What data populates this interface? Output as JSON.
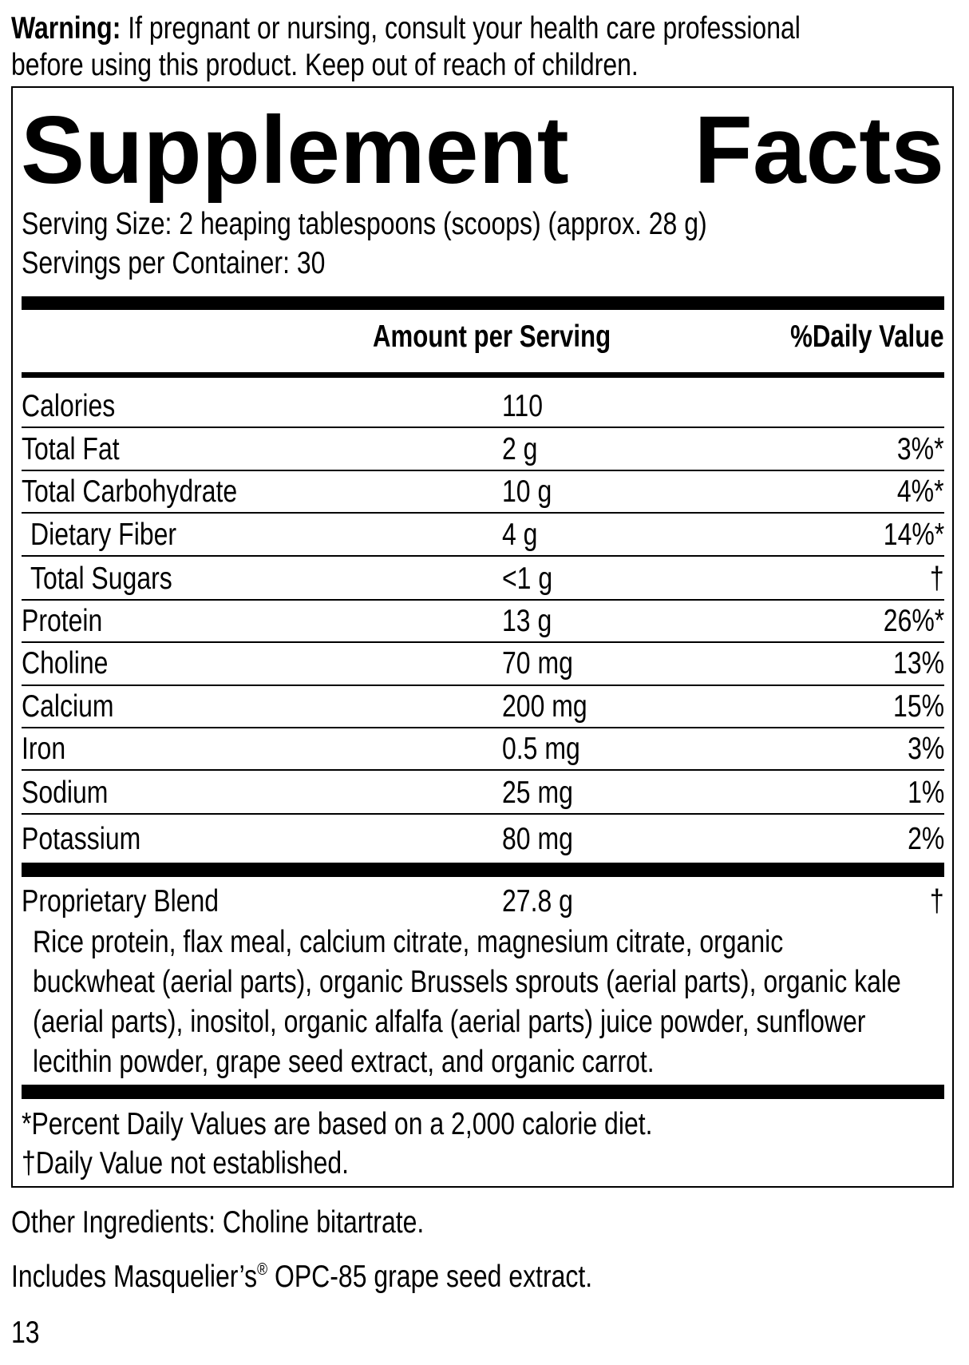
{
  "warning": {
    "label": "Warning:",
    "text": " If pregnant or nursing, consult your health care professional",
    "text2": "before using this product. Keep out of reach of children."
  },
  "facts": {
    "title_left": "Supplement",
    "title_right": "Facts",
    "serving_size": "Serving Size: 2 heaping tablespoons (scoops) (approx. 28 g)",
    "servings_per_container": "Servings per Container: 30",
    "header_amount": "Amount per Serving",
    "header_dv": "%Daily Value",
    "rows": [
      {
        "name": "Calories",
        "amount": "110",
        "dv": ""
      },
      {
        "name": "Total Fat",
        "amount": "2 g",
        "dv": "3%*"
      },
      {
        "name": "Total Carbohydrate",
        "amount": "10 g",
        "dv": "4%*"
      },
      {
        "name": "Dietary Fiber",
        "amount": "4 g",
        "dv": "14%*",
        "indent": true
      },
      {
        "name": "Total Sugars",
        "amount": "<1 g",
        "dv": "†",
        "indent": true
      },
      {
        "name": "Protein",
        "amount": "13 g",
        "dv": "26%*"
      },
      {
        "name": "Choline",
        "amount": "70 mg",
        "dv": "13%"
      },
      {
        "name": "Calcium",
        "amount": "200 mg",
        "dv": "15%"
      },
      {
        "name": "Iron",
        "amount": "0.5 mg",
        "dv": "3%"
      },
      {
        "name": "Sodium",
        "amount": "25 mg",
        "dv": "1%"
      },
      {
        "name": "Potassium",
        "amount": "80 mg",
        "dv": "2%"
      }
    ],
    "blend": {
      "name": "Proprietary Blend",
      "amount": "27.8 g",
      "dv": "†",
      "ingredients": [
        "Rice protein, flax meal, calcium citrate, magnesium citrate, organic",
        "buckwheat (aerial parts), organic Brussels sprouts (aerial parts), organic kale",
        "(aerial parts), inositol, organic alfalfa (aerial parts) juice powder, sunflower",
        "lecithin powder, grape seed extract, and organic carrot."
      ]
    },
    "footnote1": "*Percent Daily Values are based on a 2,000 calorie diet.",
    "footnote2": "†Daily Value not established."
  },
  "other_ingredients": "Other Ingredients: Choline bitartrate.",
  "includes": {
    "before": "Includes Masquelier’s",
    "reg": "®",
    "after": " OPC-85 grape seed extract."
  },
  "page_number": "13"
}
